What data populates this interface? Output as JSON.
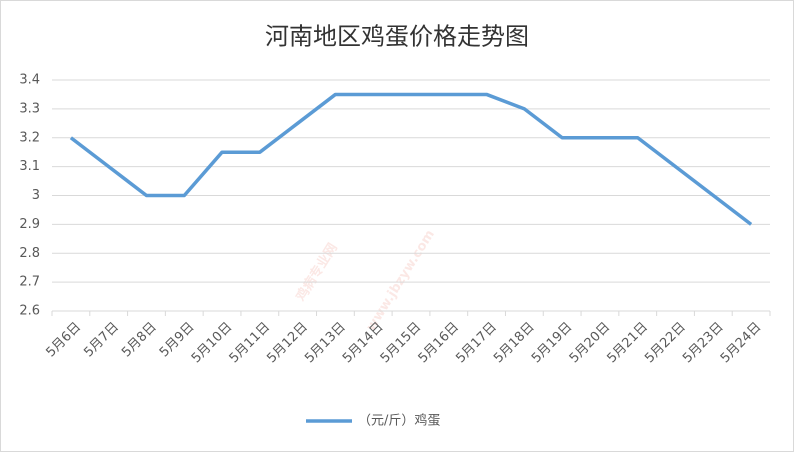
{
  "chart_data": {
    "type": "line",
    "title": "河南地区鸡蛋价格走势图",
    "watermark": [
      "鸡病专业网",
      "www.jbzyw.com"
    ],
    "categories": [
      "5月6日",
      "5月7日",
      "5月8日",
      "5月9日",
      "5月10日",
      "5月11日",
      "5月12日",
      "5月13日",
      "5月14日",
      "5月15日",
      "5月16日",
      "5月17日",
      "5月18日",
      "5月19日",
      "5月20日",
      "5月21日",
      "5月22日",
      "5月23日",
      "5月24日"
    ],
    "series": [
      {
        "name": "（元/斤）鸡蛋",
        "color": "#5b9bd5",
        "values": [
          3.2,
          3.1,
          3.0,
          3.0,
          3.15,
          3.15,
          3.25,
          3.35,
          3.35,
          3.35,
          3.35,
          3.35,
          3.3,
          3.2,
          3.2,
          3.2,
          3.1,
          3.0,
          2.9
        ]
      }
    ],
    "ylim": [
      2.6,
      3.4
    ],
    "yticks": [
      2.6,
      2.7,
      2.8,
      2.9,
      3,
      3.1,
      3.2,
      3.3,
      3.4
    ],
    "grid": true,
    "legend": "bottom"
  }
}
